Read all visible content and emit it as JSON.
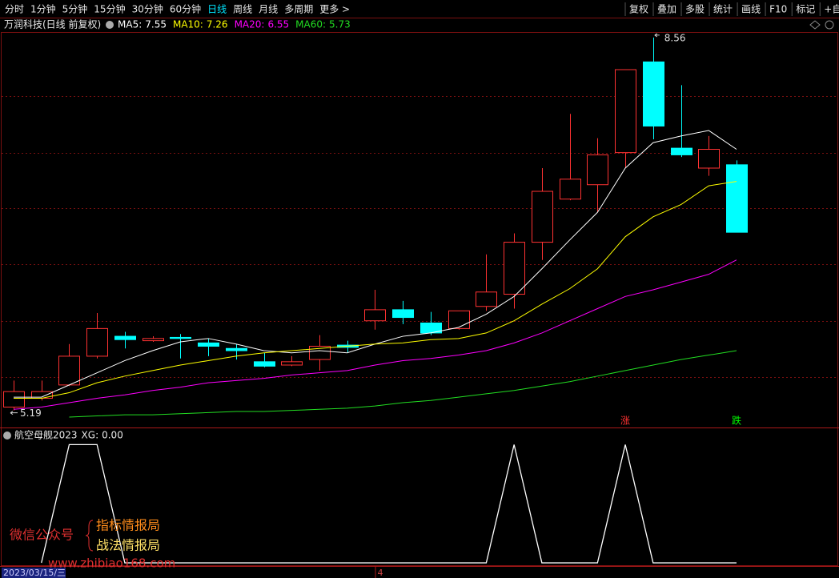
{
  "toolbar": {
    "periods": [
      "分时",
      "1分钟",
      "5分钟",
      "15分钟",
      "30分钟",
      "60分钟",
      "日线",
      "周线",
      "月线",
      "多周期",
      "更多 >"
    ],
    "active_period": 6,
    "tools": [
      "复权",
      "叠加",
      "多股",
      "统计",
      "画线",
      "F10",
      "标记",
      "+自"
    ]
  },
  "chart_data": [
    {
      "type": "candlestick",
      "title": "万润科技(日线 前复权)",
      "categories": [
        "2023/03/15/三",
        null,
        null,
        null,
        null,
        null,
        null,
        null,
        null,
        null,
        null,
        null,
        null,
        "4",
        null,
        null,
        null,
        null,
        null,
        null,
        null,
        null,
        null,
        null,
        null,
        null,
        null
      ],
      "up_color": "#ff3232",
      "down_color": "#00ffff",
      "candles": [
        {
          "open": 5.22,
          "close": 5.36,
          "high": 5.46,
          "low": 5.19
        },
        {
          "open": 5.3,
          "close": 5.36,
          "high": 5.46,
          "low": 5.28
        },
        {
          "open": 5.42,
          "close": 5.68,
          "high": 5.79,
          "low": 5.41
        },
        {
          "open": 5.68,
          "close": 5.93,
          "high": 6.07,
          "low": 5.66
        },
        {
          "open": 5.86,
          "close": 5.83,
          "high": 5.9,
          "low": 5.75
        },
        {
          "open": 5.82,
          "close": 5.84,
          "high": 5.86,
          "low": 5.81
        },
        {
          "open": 5.85,
          "close": 5.84,
          "high": 5.88,
          "low": 5.66
        },
        {
          "open": 5.8,
          "close": 5.77,
          "high": 5.84,
          "low": 5.68
        },
        {
          "open": 5.75,
          "close": 5.73,
          "high": 5.79,
          "low": 5.65
        },
        {
          "open": 5.63,
          "close": 5.59,
          "high": 5.71,
          "low": 5.58
        },
        {
          "open": 5.6,
          "close": 5.63,
          "high": 5.68,
          "low": 5.59
        },
        {
          "open": 5.65,
          "close": 5.77,
          "high": 5.87,
          "low": 5.55
        },
        {
          "open": 5.78,
          "close": 5.76,
          "high": 5.82,
          "low": 5.71
        },
        {
          "open": 6.0,
          "close": 6.1,
          "high": 6.28,
          "low": 5.92
        },
        {
          "open": 6.1,
          "close": 6.03,
          "high": 6.18,
          "low": 5.97
        },
        {
          "open": 5.98,
          "close": 5.89,
          "high": 6.08,
          "low": 5.87
        },
        {
          "open": 5.93,
          "close": 6.09,
          "high": 6.09,
          "low": 5.92
        },
        {
          "open": 6.13,
          "close": 6.26,
          "high": 6.6,
          "low": 6.09
        },
        {
          "open": 6.24,
          "close": 6.71,
          "high": 6.79,
          "low": 6.11
        },
        {
          "open": 6.71,
          "close": 7.17,
          "high": 7.38,
          "low": 6.55
        },
        {
          "open": 7.1,
          "close": 7.28,
          "high": 7.87,
          "low": 7.09
        },
        {
          "open": 7.23,
          "close": 7.5,
          "high": 7.65,
          "low": 6.98
        },
        {
          "open": 7.52,
          "close": 8.27,
          "high": 8.27,
          "low": 7.38
        },
        {
          "open": 8.34,
          "close": 7.76,
          "high": 8.56,
          "low": 7.64
        },
        {
          "open": 7.56,
          "close": 7.5,
          "high": 8.13,
          "low": 7.48
        },
        {
          "open": 7.38,
          "close": 7.55,
          "high": 7.67,
          "low": 7.31
        },
        {
          "open": 7.41,
          "close": 6.8,
          "high": 7.45,
          "low": 6.8
        }
      ],
      "series": [
        {
          "name": "MA5:",
          "color": "#ffffff",
          "values": [
            5.31,
            5.31,
            5.42,
            5.53,
            5.64,
            5.73,
            5.81,
            5.84,
            5.79,
            5.73,
            5.71,
            5.73,
            5.71,
            5.79,
            5.86,
            5.89,
            5.94,
            6.06,
            6.22,
            6.47,
            6.73,
            6.98,
            7.38,
            7.61,
            7.67,
            7.72,
            7.55
          ]
        },
        {
          "name": "MA10:",
          "color": "#ffff00",
          "values": [
            5.3,
            5.3,
            5.35,
            5.44,
            5.5,
            5.55,
            5.6,
            5.64,
            5.68,
            5.71,
            5.73,
            5.75,
            5.77,
            5.79,
            5.8,
            5.83,
            5.84,
            5.89,
            6.0,
            6.15,
            6.29,
            6.47,
            6.76,
            6.94,
            7.05,
            7.22,
            7.26
          ]
        },
        {
          "name": "MA20:",
          "color": "#ff00ff",
          "values": [
            5.2,
            5.22,
            5.26,
            5.3,
            5.33,
            5.37,
            5.4,
            5.44,
            5.46,
            5.48,
            5.51,
            5.53,
            5.55,
            5.6,
            5.64,
            5.66,
            5.69,
            5.73,
            5.8,
            5.89,
            6.0,
            6.11,
            6.22,
            6.28,
            6.35,
            6.42,
            6.55
          ]
        },
        {
          "name": "MA60:",
          "color": "#22dd22",
          "values": [
            null,
            null,
            5.13,
            5.14,
            5.15,
            5.15,
            5.16,
            5.17,
            5.18,
            5.18,
            5.19,
            5.2,
            5.21,
            5.23,
            5.26,
            5.28,
            5.31,
            5.34,
            5.37,
            5.41,
            5.45,
            5.5,
            5.55,
            5.6,
            5.65,
            5.69,
            5.73
          ]
        }
      ],
      "signals": [
        null,
        null,
        null,
        null,
        null,
        null,
        null,
        null,
        null,
        null,
        null,
        null,
        null,
        null,
        null,
        null,
        null,
        null,
        null,
        null,
        null,
        null,
        {
          "label": "涨",
          "color": "#ff3232"
        },
        null,
        null,
        null,
        {
          "label": "跌",
          "color": "#00ff00"
        }
      ],
      "ylim": [
        5.05,
        8.61
      ],
      "ygrid": [
        5.49,
        6.0,
        6.51,
        7.02,
        7.52,
        8.03
      ]
    },
    {
      "type": "line",
      "title": "航空母舰2023",
      "series": [
        {
          "name": "XG:",
          "last_label": "0.00",
          "color": "#ffffff",
          "values": [
            null,
            0,
            1,
            1,
            0,
            0,
            0,
            0,
            0,
            0,
            0,
            0,
            0,
            0,
            0,
            0,
            0,
            0,
            1,
            0,
            0,
            0,
            1,
            0,
            0,
            0,
            0
          ]
        }
      ],
      "ylim": [
        -0.02,
        1.07
      ]
    }
  ],
  "watermark": {
    "account": "微信公众号",
    "names": [
      "指标情报局",
      "战法情报局"
    ],
    "url": "www.zhibiao168.com"
  }
}
